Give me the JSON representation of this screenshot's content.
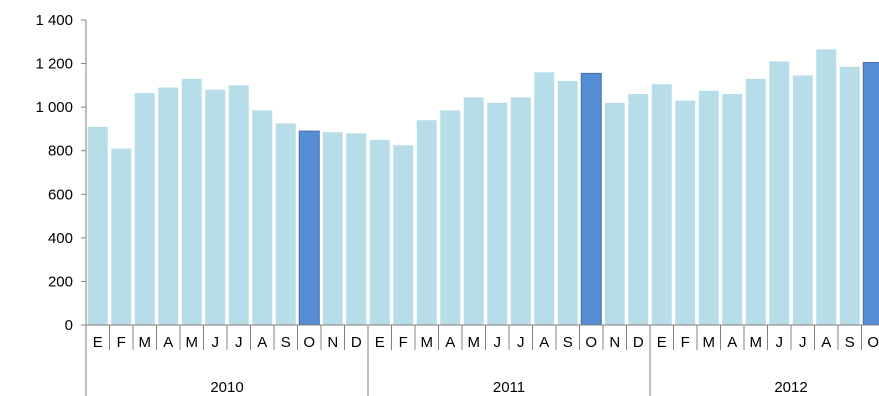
{
  "chart_data": {
    "type": "bar",
    "title": "",
    "xlabel": "",
    "ylabel": "",
    "ylim": [
      0,
      1400
    ],
    "yticks": [
      0,
      200,
      400,
      600,
      800,
      1000,
      1200,
      1400
    ],
    "ytick_labels": [
      "0",
      "200",
      "400",
      "600",
      "800",
      "1 000",
      "1 200",
      "1 400"
    ],
    "grid": false,
    "legend": "none",
    "colors": {
      "bar": "#b7dde8",
      "highlight": "#558ed5",
      "highlight_edge": "#4a6fa5",
      "axis": "#808080"
    },
    "years": [
      {
        "label": "2010",
        "months": 12
      },
      {
        "label": "2011",
        "months": 12
      },
      {
        "label": "2012",
        "months": 10
      }
    ],
    "categories": [
      "E",
      "F",
      "M",
      "A",
      "M",
      "J",
      "J",
      "A",
      "S",
      "O",
      "N",
      "D",
      "E",
      "F",
      "M",
      "A",
      "M",
      "J",
      "J",
      "A",
      "S",
      "O",
      "N",
      "D",
      "E",
      "F",
      "M",
      "A",
      "M",
      "J",
      "J",
      "A",
      "S",
      "O"
    ],
    "values": [
      910,
      810,
      1065,
      1090,
      1130,
      1080,
      1100,
      985,
      925,
      890,
      885,
      880,
      850,
      825,
      940,
      985,
      1045,
      1020,
      1045,
      1160,
      1120,
      1155,
      1020,
      1060,
      1105,
      1030,
      1075,
      1060,
      1130,
      1210,
      1145,
      1265,
      1185,
      1205
    ],
    "highlight_indices": [
      9,
      21,
      33
    ]
  }
}
